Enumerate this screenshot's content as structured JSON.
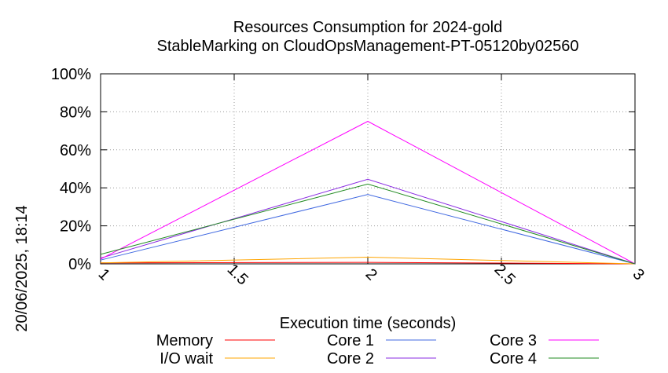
{
  "chart_data": {
    "type": "line",
    "title": "Resources Consumption for 2024-gold",
    "subtitle": "StableMarking on CloudOpsManagement-PT-05120by02560",
    "xlabel": "Execution time (seconds)",
    "ylabel": "",
    "side_label": "20/06/2025, 18:14",
    "xlim": [
      1,
      3
    ],
    "ylim": [
      0,
      100
    ],
    "x_ticks": [
      1,
      1.5,
      2,
      2.5,
      3
    ],
    "x_tick_labels": [
      "1",
      "1.5",
      "2",
      "2.5",
      "3"
    ],
    "y_ticks": [
      0,
      20,
      40,
      60,
      80,
      100
    ],
    "y_tick_labels": [
      "0%",
      "20%",
      "40%",
      "60%",
      "80%",
      "100%"
    ],
    "grid": true,
    "legend_position": "bottom",
    "x": [
      1,
      2,
      3
    ],
    "series": [
      {
        "name": "Memory",
        "color": "#ff0000",
        "values": [
          0.5,
          0.8,
          0
        ]
      },
      {
        "name": "I/O wait",
        "color": "#ffa500",
        "values": [
          0.5,
          3.5,
          0
        ]
      },
      {
        "name": "Core 1",
        "color": "#4169e1",
        "values": [
          2,
          36.5,
          0
        ]
      },
      {
        "name": "Core 2",
        "color": "#8a2be2",
        "values": [
          3,
          44.5,
          0
        ]
      },
      {
        "name": "Core 3",
        "color": "#ff00ff",
        "values": [
          2.5,
          75,
          0
        ]
      },
      {
        "name": "Core 4",
        "color": "#228b22",
        "values": [
          5,
          42,
          0
        ]
      }
    ]
  }
}
